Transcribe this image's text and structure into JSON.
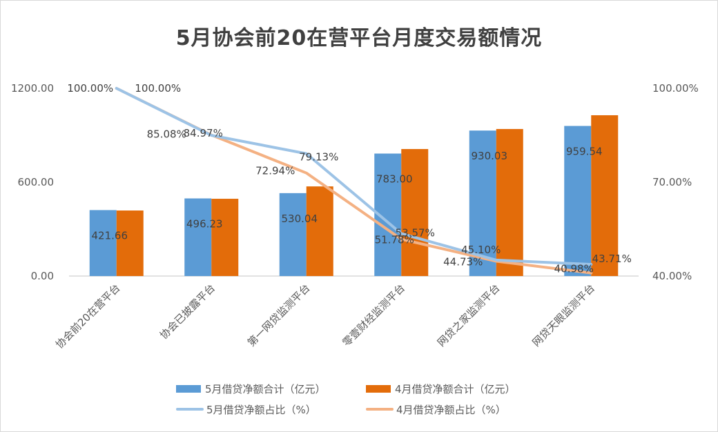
{
  "chart_data": {
    "type": "bar",
    "title": "5月协会前20在营平台月度交易额情况",
    "categories": [
      "协会前20在营平台",
      "协会已披露平台",
      "第一网贷监测平台",
      "零壹财经监测平台",
      "网贷之家监测平台",
      "网贷天眼监测平台"
    ],
    "y_left": {
      "ticks": [
        "0.00",
        "600.00",
        "1200.00"
      ],
      "range": [
        0,
        1200
      ]
    },
    "y_right": {
      "ticks": [
        "40.00%",
        "70.00%",
        "100.00%"
      ],
      "range": [
        40,
        100
      ]
    },
    "grid": false,
    "legend_position": "bottom",
    "series": [
      {
        "name": "5月借贷净额合计（亿元）",
        "kind": "bar",
        "axis": "left",
        "color": "#5b9bd5",
        "values": [
          421.66,
          496.23,
          530.04,
          783.0,
          930.03,
          959.54
        ],
        "labels": [
          "421.66",
          "496.23",
          "530.04",
          "783.00",
          "930.03",
          "959.54"
        ]
      },
      {
        "name": "4月借贷净额合计（亿元）",
        "kind": "bar",
        "axis": "left",
        "color": "#e36c0a",
        "values": [
          419,
          494,
          573,
          812,
          940,
          1028
        ]
      },
      {
        "name": "5月借贷净额占比（%）",
        "kind": "line",
        "axis": "right",
        "color": "#9dc3e6",
        "values": [
          100.0,
          84.97,
          79.13,
          53.57,
          45.1,
          43.71
        ],
        "labels": [
          "100.00%",
          "84.97%",
          "79.13%",
          "53.57%",
          "45.10%",
          "43.71%"
        ]
      },
      {
        "name": "4月借贷净额占比（%）",
        "kind": "line",
        "axis": "right",
        "color": "#f4b183",
        "values": [
          100.0,
          85.08,
          72.94,
          51.78,
          44.73,
          40.98
        ],
        "labels": [
          "100.00%",
          "85.08%",
          "72.94%",
          "51.78%",
          "44.73%",
          "40.98%"
        ]
      }
    ]
  }
}
